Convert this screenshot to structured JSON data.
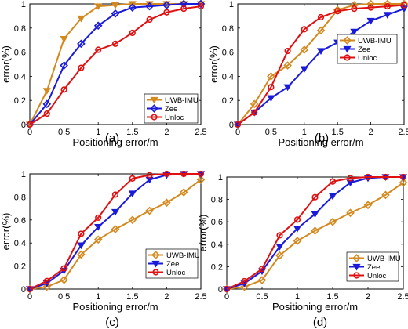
{
  "colors": {
    "UWB-IMU": "#D4891E",
    "Zee": "#1A1ADB",
    "Unloc": "#E01010"
  },
  "chart_data": [
    {
      "type": "line",
      "caption": "(a)",
      "xlabel": "Positioning error/m",
      "ylabel": "error(%)",
      "xlim": [
        0,
        2.5
      ],
      "ylim": [
        0,
        1
      ],
      "xticks": [
        "0",
        "0.5",
        "1",
        "1.5",
        "2",
        "2.5"
      ],
      "yticks": [
        "0",
        "0.2",
        "0.4",
        "0.6",
        "0.8",
        "1"
      ],
      "legend_position": "bottom-right",
      "x": [
        0,
        0.25,
        0.5,
        0.75,
        1.0,
        1.25,
        1.5,
        1.75,
        2.0,
        2.25,
        2.5
      ],
      "series": [
        {
          "name": "UWB-IMU",
          "marker": "triangle-down",
          "values": [
            0,
            0.28,
            0.71,
            0.88,
            0.98,
            0.99,
            1.0,
            1.0,
            1.0,
            1.0,
            1.0
          ]
        },
        {
          "name": "Zee",
          "marker": "diamond",
          "values": [
            0,
            0.17,
            0.49,
            0.67,
            0.82,
            0.92,
            0.97,
            0.98,
            0.99,
            1.0,
            1.0
          ]
        },
        {
          "name": "Unloc",
          "marker": "circle",
          "values": [
            0,
            0.09,
            0.29,
            0.47,
            0.62,
            0.67,
            0.76,
            0.87,
            0.93,
            0.96,
            0.98
          ]
        }
      ]
    },
    {
      "type": "line",
      "caption": "(b)",
      "xlabel": "Positioning error/m",
      "ylabel": "error(%)",
      "xlim": [
        0,
        2.5
      ],
      "ylim": [
        0,
        1
      ],
      "xticks": [
        "0",
        "0.5",
        "1",
        "1.5",
        "2",
        "2.5"
      ],
      "yticks": [
        "0",
        "0.2",
        "0.4",
        "0.6",
        "0.8",
        "1"
      ],
      "legend_position": "right",
      "x": [
        0,
        0.25,
        0.5,
        0.75,
        1.0,
        1.25,
        1.5,
        1.75,
        2.0,
        2.25,
        2.5
      ],
      "series": [
        {
          "name": "UWB-IMU",
          "marker": "diamond",
          "values": [
            0,
            0.17,
            0.4,
            0.49,
            0.62,
            0.78,
            0.95,
            0.99,
            1.0,
            1.0,
            1.0
          ]
        },
        {
          "name": "Zee",
          "marker": "triangle-down",
          "values": [
            0,
            0.1,
            0.22,
            0.31,
            0.46,
            0.61,
            0.68,
            0.77,
            0.86,
            0.91,
            0.96
          ]
        },
        {
          "name": "Unloc",
          "marker": "circle",
          "values": [
            0,
            0.1,
            0.31,
            0.61,
            0.79,
            0.89,
            0.94,
            0.96,
            0.97,
            0.98,
            0.99
          ]
        }
      ]
    },
    {
      "type": "line",
      "caption": "(c)",
      "xlabel": "Positioning error/m",
      "ylabel": "error(%)",
      "xlim": [
        0,
        2.5
      ],
      "ylim": [
        0,
        1
      ],
      "xticks": [
        "0",
        "0.5",
        "1",
        "1.5",
        "2",
        "2.5"
      ],
      "yticks": [
        "0",
        "0.2",
        "0.4",
        "0.6",
        "0.8",
        "1"
      ],
      "legend_position": "bottom-right",
      "x": [
        0,
        0.25,
        0.5,
        0.75,
        1.0,
        1.25,
        1.5,
        1.75,
        2.0,
        2.25,
        2.5
      ],
      "series": [
        {
          "name": "UWB-IMU",
          "marker": "diamond",
          "values": [
            0,
            0.02,
            0.08,
            0.3,
            0.43,
            0.52,
            0.6,
            0.68,
            0.75,
            0.84,
            0.95
          ]
        },
        {
          "name": "Zee",
          "marker": "triangle-down",
          "values": [
            0,
            0.05,
            0.16,
            0.38,
            0.54,
            0.67,
            0.83,
            0.95,
            0.99,
            1.0,
            1.0
          ]
        },
        {
          "name": "Unloc",
          "marker": "circle",
          "values": [
            0,
            0.07,
            0.18,
            0.48,
            0.62,
            0.82,
            0.96,
            0.99,
            1.0,
            1.0,
            1.0
          ]
        }
      ]
    },
    {
      "type": "line",
      "caption": "(d)",
      "xlabel": "Positioning error/m",
      "ylabel": "error(%)",
      "xlim": [
        0,
        2.5
      ],
      "ylim": [
        0,
        1
      ],
      "xticks": [
        "0",
        "0.5",
        "1",
        "1.5",
        "2",
        "2.5"
      ],
      "yticks": [
        "0",
        "0.2",
        "0.4",
        "0.6",
        "0.8",
        "1"
      ],
      "legend_position": "bottom-right",
      "x": [
        0,
        0.25,
        0.5,
        0.75,
        1.0,
        1.25,
        1.5,
        1.75,
        2.0,
        2.25,
        2.5
      ],
      "series": [
        {
          "name": "UWB-IMU",
          "marker": "diamond",
          "values": [
            0,
            0.02,
            0.08,
            0.3,
            0.43,
            0.52,
            0.6,
            0.68,
            0.75,
            0.84,
            0.95
          ]
        },
        {
          "name": "Zee",
          "marker": "triangle-down",
          "values": [
            0,
            0.05,
            0.16,
            0.38,
            0.54,
            0.67,
            0.83,
            0.95,
            0.99,
            1.0,
            1.0
          ]
        },
        {
          "name": "Unloc",
          "marker": "circle",
          "values": [
            0,
            0.07,
            0.18,
            0.48,
            0.62,
            0.82,
            0.96,
            0.99,
            1.0,
            1.0,
            1.0
          ]
        }
      ]
    }
  ]
}
